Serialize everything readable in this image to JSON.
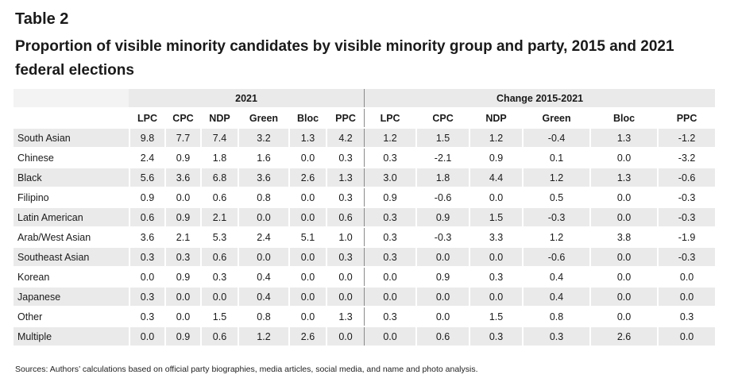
{
  "table_label": "Table 2",
  "title": "Proportion of visible minority candidates by visible minority group and party, 2015 and 2021 federal elections",
  "group_headers": [
    "2021",
    "Change 2015-2021"
  ],
  "columns": [
    "LPC",
    "CPC",
    "NDP",
    "Green",
    "Bloc",
    "PPC",
    "LPC",
    "CPC",
    "NDP",
    "Green",
    "Bloc",
    "PPC"
  ],
  "rows": [
    {
      "label": "South Asian",
      "values": [
        "9.8",
        "7.7",
        "7.4",
        "3.2",
        "1.3",
        "4.2",
        "1.2",
        "1.5",
        "1.2",
        "-0.4",
        "1.3",
        "-1.2"
      ]
    },
    {
      "label": "Chinese",
      "values": [
        "2.4",
        "0.9",
        "1.8",
        "1.6",
        "0.0",
        "0.3",
        "0.3",
        "-2.1",
        "0.9",
        "0.1",
        "0.0",
        "-3.2"
      ]
    },
    {
      "label": "Black",
      "values": [
        "5.6",
        "3.6",
        "6.8",
        "3.6",
        "2.6",
        "1.3",
        "3.0",
        "1.8",
        "4.4",
        "1.2",
        "1.3",
        "-0.6"
      ]
    },
    {
      "label": "Filipino",
      "values": [
        "0.9",
        "0.0",
        "0.6",
        "0.8",
        "0.0",
        "0.3",
        "0.9",
        "-0.6",
        "0.0",
        "0.5",
        "0.0",
        "-0.3"
      ]
    },
    {
      "label": "Latin American",
      "values": [
        "0.6",
        "0.9",
        "2.1",
        "0.0",
        "0.0",
        "0.6",
        "0.3",
        "0.9",
        "1.5",
        "-0.3",
        "0.0",
        "-0.3"
      ]
    },
    {
      "label": "Arab/West Asian",
      "values": [
        "3.6",
        "2.1",
        "5.3",
        "2.4",
        "5.1",
        "1.0",
        "0.3",
        "-0.3",
        "3.3",
        "1.2",
        "3.8",
        "-1.9"
      ]
    },
    {
      "label": "Southeast Asian",
      "values": [
        "0.3",
        "0.3",
        "0.6",
        "0.0",
        "0.0",
        "0.3",
        "0.3",
        "0.0",
        "0.0",
        "-0.6",
        "0.0",
        "-0.3"
      ]
    },
    {
      "label": "Korean",
      "values": [
        "0.0",
        "0.9",
        "0.3",
        "0.4",
        "0.0",
        "0.0",
        "0.0",
        "0.9",
        "0.3",
        "0.4",
        "0.0",
        "0.0"
      ]
    },
    {
      "label": "Japanese",
      "values": [
        "0.3",
        "0.0",
        "0.0",
        "0.4",
        "0.0",
        "0.0",
        "0.0",
        "0.0",
        "0.0",
        "0.4",
        "0.0",
        "0.0"
      ]
    },
    {
      "label": "Other",
      "values": [
        "0.3",
        "0.0",
        "1.5",
        "0.8",
        "0.0",
        "1.3",
        "0.3",
        "0.0",
        "1.5",
        "0.8",
        "0.0",
        "0.3"
      ]
    },
    {
      "label": "Multiple",
      "values": [
        "0.0",
        "0.9",
        "0.6",
        "1.2",
        "2.6",
        "0.0",
        "0.0",
        "0.6",
        "0.3",
        "0.3",
        "2.6",
        "0.0"
      ]
    }
  ],
  "source_note": "Sources: Authors’ calculations based on official party biographies, media articles, social media, and name and photo analysis."
}
